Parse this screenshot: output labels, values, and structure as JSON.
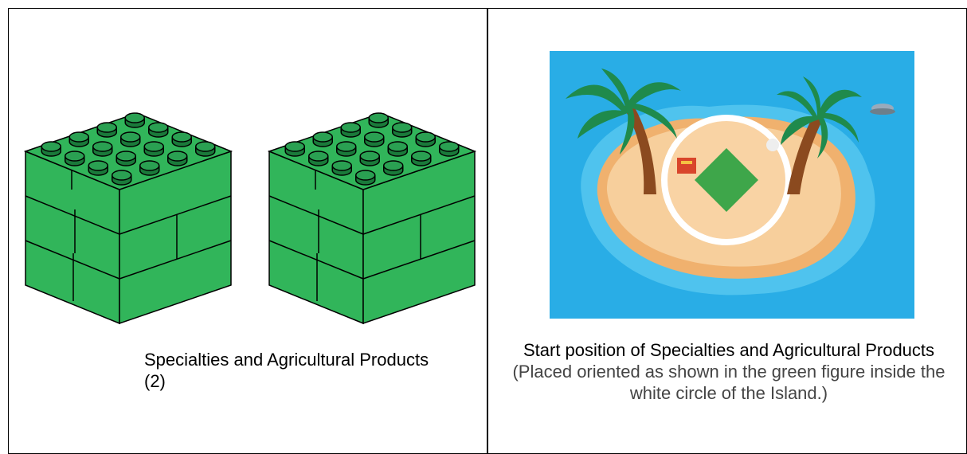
{
  "table": {
    "rows": [
      [
        {
          "caption": "Specialties and Agricultural Products (2)"
        },
        {
          "caption": "Start position of Specialties and Agricultural Products",
          "note": "(Placed oriented as shown in the green figure inside the white circle of the Island.)"
        }
      ]
    ]
  }
}
